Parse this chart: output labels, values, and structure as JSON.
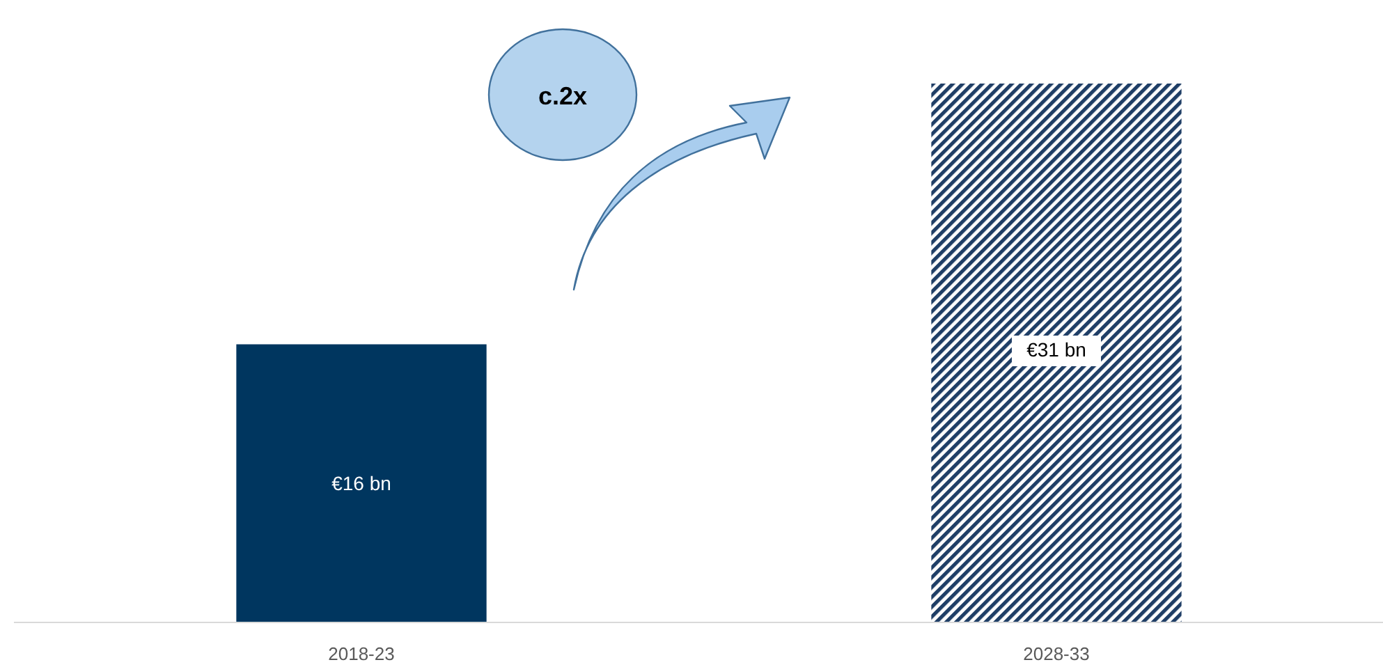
{
  "chart_data": {
    "type": "bar",
    "categories": [
      "2018-23",
      "2028-33"
    ],
    "series": [
      {
        "color": "#00365f",
        "values": [
          16,
          null
        ],
        "value_labels": [
          "€16 bn",
          null
        ]
      },
      {
        "color": "#1f3e66",
        "values": [
          null,
          31
        ],
        "value_labels": [
          null,
          "€31 bn"
        ]
      }
    ],
    "annotations": [
      "c.2x"
    ]
  }
}
